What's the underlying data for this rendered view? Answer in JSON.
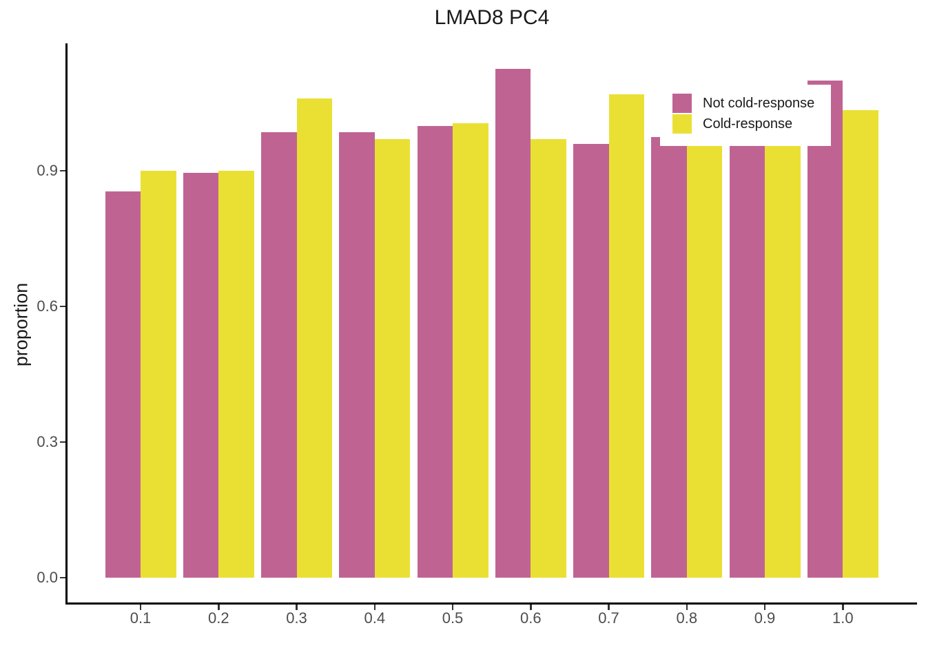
{
  "title": "LMAD8 PC4",
  "colors": {
    "not_cold_response": "#BF6492",
    "cold_response": "#EAE033",
    "axis_line": "#000000",
    "tick_text": "#4D4D4D",
    "title_text": "#1A1A1A",
    "background": "#FFFFFF"
  },
  "chart_data": {
    "type": "bar",
    "title": "LMAD8 PC4",
    "xlabel": "",
    "ylabel": "proportion",
    "categories": [
      "0.1",
      "0.2",
      "0.3",
      "0.4",
      "0.5",
      "0.6",
      "0.7",
      "0.8",
      "0.9",
      "1.0"
    ],
    "series": [
      {
        "name": "Not cold-response",
        "color": "#BF6492",
        "values": [
          0.855,
          0.895,
          0.985,
          0.985,
          1.0,
          1.125,
          0.96,
          0.975,
          0.955,
          1.1
        ]
      },
      {
        "name": "Cold-response",
        "color": "#EAE033",
        "values": [
          0.9,
          0.9,
          1.06,
          0.97,
          1.005,
          0.97,
          1.07,
          0.955,
          0.955,
          1.035
        ]
      }
    ],
    "y_ticks": [
      0.0,
      0.3,
      0.6,
      0.9
    ],
    "y_tick_labels": [
      "0.0",
      "0.3",
      "0.6",
      "0.9"
    ],
    "ylim": [
      0,
      1.18
    ],
    "grid": false,
    "legend_position": "top-right-inside",
    "note": "legend background overlaps tops of bars near x=0.8-1.0"
  },
  "legend": {
    "items": [
      {
        "label": "Not cold-response",
        "color": "#BF6492"
      },
      {
        "label": "Cold-response",
        "color": "#EAE033"
      }
    ]
  }
}
